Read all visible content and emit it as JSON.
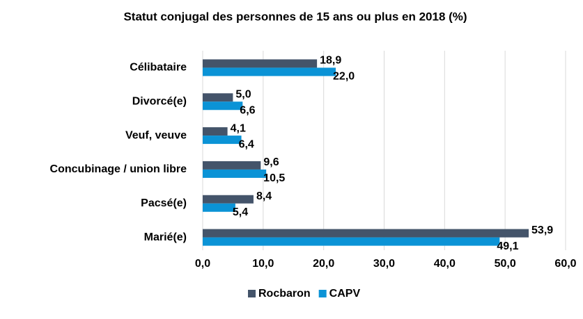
{
  "chart_data": {
    "type": "hbar",
    "title": "Statut conjugal des personnes de 15 ans ou plus en 2018 (%)",
    "categories": [
      "Célibataire",
      "Divorcé(e)",
      "Veuf, veuve",
      "Concubinage / union libre",
      "Pacsé(e)",
      "Marié(e)"
    ],
    "series": [
      {
        "name": "Rocbaron",
        "color": "#44546a",
        "values": [
          18.9,
          5.0,
          4.1,
          9.6,
          8.4,
          53.9
        ],
        "value_labels": [
          "18,9",
          "5,0",
          "4,1",
          "9,6",
          "8,4",
          "53,9"
        ]
      },
      {
        "name": "CAPV",
        "color": "#0b93d6",
        "values": [
          22.0,
          6.6,
          6.4,
          10.5,
          5.4,
          49.1
        ],
        "value_labels": [
          "22,0",
          "6,6",
          "6,4",
          "10,5",
          "5,4",
          "49,1"
        ]
      }
    ],
    "xlim": [
      0,
      60
    ],
    "xticks": [
      {
        "value": 0,
        "label": "0,0"
      },
      {
        "value": 10,
        "label": "10,0"
      },
      {
        "value": 20,
        "label": "20,0"
      },
      {
        "value": 30,
        "label": "30,0"
      },
      {
        "value": 40,
        "label": "40,0"
      },
      {
        "value": 50,
        "label": "50,0"
      },
      {
        "value": 60,
        "label": "60,0"
      }
    ],
    "grid": true,
    "legend": "bottom"
  }
}
